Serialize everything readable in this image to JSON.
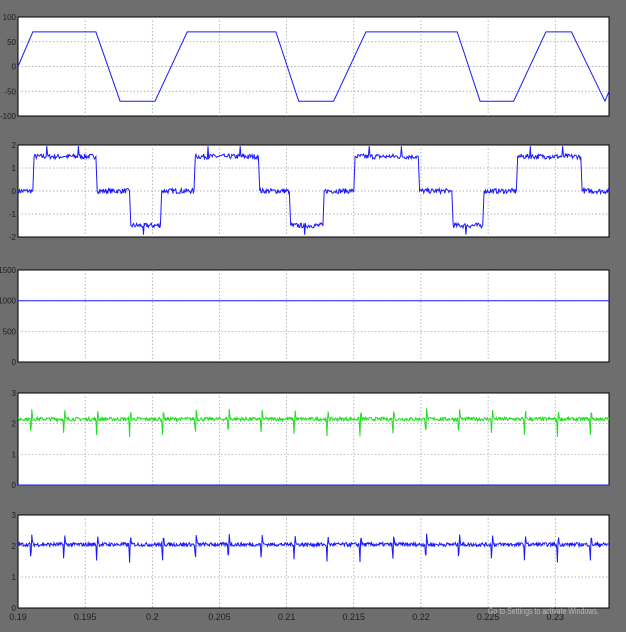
{
  "window": {
    "watermark": "Activate Windows",
    "watermark_sub": "Go to Settings to activate Windows."
  },
  "colors": {
    "background": "#6e6e6e",
    "axes": "#ffffff",
    "trace_blue": "#1a1aff",
    "trace_green": "#22dd22"
  },
  "chart_data": [
    {
      "type": "line",
      "title": "",
      "xlim": [
        0.19,
        0.234
      ],
      "ylim": [
        -100,
        100
      ],
      "y_ticks": [
        "100",
        "50",
        "0",
        "-50",
        "-100"
      ],
      "grid": true,
      "series": [
        {
          "color": "#1a1aff",
          "x": [
            0.19,
            0.1911,
            0.1934,
            0.1958,
            0.1976,
            0.2002,
            0.2026,
            0.2044,
            0.2068,
            0.2092,
            0.2109,
            0.2135,
            0.2159,
            0.2177,
            0.2203,
            0.2227,
            0.2244,
            0.2269,
            0.2293,
            0.2312,
            0.2337,
            0.234
          ],
          "y": [
            0,
            70,
            70,
            70,
            -70,
            -70,
            70,
            70,
            70,
            70,
            -70,
            -70,
            70,
            70,
            70,
            70,
            -70,
            -70,
            70,
            70,
            -70,
            -50
          ]
        }
      ]
    },
    {
      "type": "line",
      "title": "",
      "xlim": [
        0.19,
        0.234
      ],
      "ylim": [
        -2,
        2
      ],
      "y_ticks": [
        "2",
        "1",
        "0",
        "-1",
        "-2"
      ],
      "grid": true,
      "series": [
        {
          "color": "#1a1aff",
          "x": [
            0.19,
            0.1911,
            0.1912,
            0.1934,
            0.1935,
            0.1958,
            0.1959,
            0.1983,
            0.1984,
            0.2006,
            0.2007,
            0.2031,
            0.2032,
            0.2054,
            0.2055,
            0.2079,
            0.208,
            0.2102,
            0.2103,
            0.2127,
            0.2128,
            0.215,
            0.2151,
            0.2175,
            0.2176,
            0.2198,
            0.2199,
            0.2223,
            0.2224,
            0.2246,
            0.2247,
            0.2271,
            0.2272,
            0.2294,
            0.2295,
            0.2319,
            0.232,
            0.234
          ],
          "y": [
            0,
            0,
            1.5,
            1.5,
            1.5,
            1.5,
            0,
            0,
            -1.5,
            -1.5,
            0,
            0,
            1.5,
            1.5,
            1.5,
            1.5,
            0,
            0,
            -1.5,
            -1.5,
            0,
            0,
            1.5,
            1.5,
            1.5,
            1.5,
            0,
            0,
            -1.5,
            -1.5,
            0,
            0,
            1.5,
            1.5,
            1.5,
            1.5,
            0,
            0
          ]
        }
      ]
    },
    {
      "type": "line",
      "title": "",
      "xlim": [
        0.19,
        0.234
      ],
      "ylim": [
        0,
        1500
      ],
      "y_ticks": [
        "1500",
        "1000",
        "500",
        "0"
      ],
      "grid": true,
      "series": [
        {
          "color": "#1a1aff",
          "x": [
            0.19,
            0.234
          ],
          "y": [
            1000,
            1000
          ]
        }
      ]
    },
    {
      "type": "line",
      "title": "",
      "xlim": [
        0.19,
        0.234
      ],
      "ylim": [
        0,
        3
      ],
      "y_ticks": [
        "3",
        "2",
        "1",
        "0"
      ],
      "grid": true,
      "series": [
        {
          "color": "#22dd22",
          "baseline": 2.15,
          "spike": 0.35,
          "dip": 0.6,
          "period": 0.00245,
          "x": [
            0.19,
            0.234
          ]
        },
        {
          "color": "#1a1aff",
          "x": [
            0.19,
            0.234
          ],
          "y": [
            0,
            0
          ]
        }
      ]
    },
    {
      "type": "line",
      "title": "",
      "xlim": [
        0.19,
        0.234
      ],
      "ylim": [
        0,
        3
      ],
      "y_ticks": [
        "3",
        "2",
        "1",
        "0"
      ],
      "x_ticks": [
        "0.19",
        "0.195",
        "0.2",
        "0.205",
        "0.21",
        "0.215",
        "0.22",
        "0.225",
        "0.23"
      ],
      "grid": true,
      "series": [
        {
          "color": "#1a1aff",
          "baseline": 2.05,
          "spike": 0.35,
          "dip": 0.6,
          "period": 0.00245,
          "x": [
            0.19,
            0.234
          ]
        }
      ]
    }
  ]
}
